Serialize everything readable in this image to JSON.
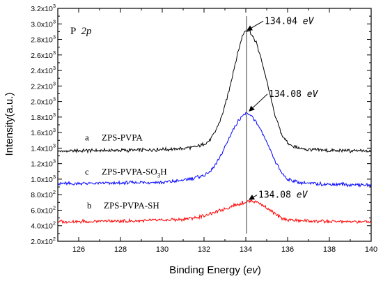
{
  "chart_data": {
    "type": "line",
    "title": "",
    "panel_label": {
      "element": "P",
      "orbital": "2p"
    },
    "xlabel": {
      "prefix": "Binding Energy (",
      "unit": "ev",
      "suffix": ")"
    },
    "ylabel": "Intensity(a.u.)",
    "xlim": [
      125,
      140
    ],
    "ylim": [
      200,
      3200
    ],
    "xticks": [
      126,
      128,
      130,
      132,
      134,
      136,
      138,
      140
    ],
    "yticks": [
      {
        "value": 200,
        "mantissa": "2.0x10",
        "exp": "2"
      },
      {
        "value": 400,
        "mantissa": "4.0x10",
        "exp": "2"
      },
      {
        "value": 600,
        "mantissa": "6.0x10",
        "exp": "2"
      },
      {
        "value": 800,
        "mantissa": "8.0x10",
        "exp": "2"
      },
      {
        "value": 1000,
        "mantissa": "1.0x10",
        "exp": "3"
      },
      {
        "value": 1200,
        "mantissa": "1.2x10",
        "exp": "3"
      },
      {
        "value": 1400,
        "mantissa": "1.4x10",
        "exp": "3"
      },
      {
        "value": 1600,
        "mantissa": "1.6x10",
        "exp": "3"
      },
      {
        "value": 1800,
        "mantissa": "1.8x10",
        "exp": "3"
      },
      {
        "value": 2000,
        "mantissa": "2.0x10",
        "exp": "3"
      },
      {
        "value": 2200,
        "mantissa": "2.2x10",
        "exp": "3"
      },
      {
        "value": 2400,
        "mantissa": "2.4x10",
        "exp": "3"
      },
      {
        "value": 2600,
        "mantissa": "2.6x10",
        "exp": "3"
      },
      {
        "value": 2800,
        "mantissa": "2.8x10",
        "exp": "3"
      },
      {
        "value": 3000,
        "mantissa": "3.0x10",
        "exp": "3"
      },
      {
        "value": 3200,
        "mantissa": "3.2x10",
        "exp": "3"
      }
    ],
    "reference_line_x": 134.04,
    "series": [
      {
        "key": "a",
        "letter": "a",
        "label": "ZPS-PVPA",
        "color": "#000000",
        "label_x": 126.3,
        "label_y": 1500,
        "peak_label": "134.04",
        "peak_unit": "eV",
        "peak_point": [
          134.0,
          2900
        ],
        "peak_label_pos": [
          134.9,
          3000
        ],
        "points": [
          [
            125,
            1360
          ],
          [
            126,
            1365
          ],
          [
            127,
            1370
          ],
          [
            128,
            1372
          ],
          [
            129,
            1375
          ],
          [
            130,
            1380
          ],
          [
            130.5,
            1385
          ],
          [
            131,
            1395
          ],
          [
            131.5,
            1410
          ],
          [
            132,
            1450
          ],
          [
            132.3,
            1510
          ],
          [
            132.6,
            1640
          ],
          [
            132.9,
            1850
          ],
          [
            133.2,
            2150
          ],
          [
            133.5,
            2500
          ],
          [
            133.8,
            2820
          ],
          [
            134.0,
            2920
          ],
          [
            134.2,
            2900
          ],
          [
            134.5,
            2760
          ],
          [
            134.8,
            2490
          ],
          [
            135.1,
            2150
          ],
          [
            135.4,
            1820
          ],
          [
            135.7,
            1590
          ],
          [
            136.0,
            1460
          ],
          [
            136.5,
            1400
          ],
          [
            137,
            1380
          ],
          [
            138,
            1370
          ],
          [
            139,
            1365
          ],
          [
            140,
            1360
          ]
        ]
      },
      {
        "key": "c",
        "letter": "c",
        "label": "ZPS-PVPA-SO",
        "label_sub": "3",
        "label_tail": "H",
        "color": "#0000ff",
        "label_x": 126.3,
        "label_y": 1060,
        "peak_label": "134.08",
        "peak_unit": "eV",
        "peak_point": [
          134.1,
          1860
        ],
        "peak_label_pos": [
          135.1,
          2060
        ],
        "points": [
          [
            125,
            940
          ],
          [
            126,
            945
          ],
          [
            127,
            948
          ],
          [
            128,
            950
          ],
          [
            129,
            955
          ],
          [
            130,
            960
          ],
          [
            130.5,
            970
          ],
          [
            131,
            985
          ],
          [
            131.5,
            1010
          ],
          [
            132,
            1050
          ],
          [
            132.3,
            1100
          ],
          [
            132.6,
            1200
          ],
          [
            132.9,
            1350
          ],
          [
            133.2,
            1530
          ],
          [
            133.5,
            1690
          ],
          [
            133.8,
            1810
          ],
          [
            134.0,
            1850
          ],
          [
            134.2,
            1830
          ],
          [
            134.5,
            1740
          ],
          [
            134.8,
            1590
          ],
          [
            135.1,
            1410
          ],
          [
            135.4,
            1230
          ],
          [
            135.7,
            1090
          ],
          [
            136.0,
            1000
          ],
          [
            136.5,
            960
          ],
          [
            137,
            945
          ],
          [
            138,
            935
          ],
          [
            139,
            930
          ],
          [
            140,
            925
          ]
        ]
      },
      {
        "key": "b",
        "letter": "b",
        "label": "ZPS-PVPA-SH",
        "color": "#ff0000",
        "label_x": 126.4,
        "label_y": 620,
        "peak_label": "134.08",
        "peak_unit": "eV",
        "peak_point": [
          134.1,
          720
        ],
        "peak_label_pos": [
          134.6,
          760
        ],
        "points": [
          [
            125,
            450
          ],
          [
            126,
            455
          ],
          [
            127,
            458
          ],
          [
            128,
            460
          ],
          [
            129,
            465
          ],
          [
            130,
            470
          ],
          [
            130.5,
            475
          ],
          [
            131,
            485
          ],
          [
            131.5,
            500
          ],
          [
            132,
            530
          ],
          [
            132.5,
            570
          ],
          [
            133,
            620
          ],
          [
            133.5,
            670
          ],
          [
            134.0,
            710
          ],
          [
            134.3,
            720
          ],
          [
            134.6,
            700
          ],
          [
            134.9,
            650
          ],
          [
            135.2,
            590
          ],
          [
            135.5,
            530
          ],
          [
            135.8,
            490
          ],
          [
            136.2,
            470
          ],
          [
            137,
            460
          ],
          [
            138,
            455
          ],
          [
            139,
            452
          ],
          [
            140,
            450
          ]
        ]
      }
    ]
  }
}
